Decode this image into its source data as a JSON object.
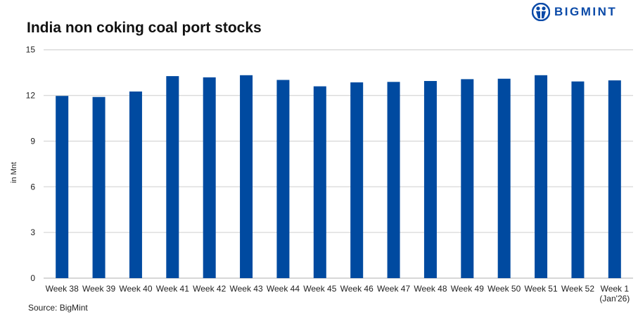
{
  "brand": {
    "name": "BIGMINT",
    "color": "#0a4aa8"
  },
  "source": "Source: BigMint",
  "chart_data": {
    "type": "bar",
    "title": "India non coking coal port stocks",
    "ylabel": "in Mnt",
    "xlabel": "",
    "ylim": [
      0,
      15
    ],
    "yticks": [
      0,
      3,
      6,
      9,
      12,
      15
    ],
    "grid": true,
    "bar_color": "#004aa0",
    "categories": [
      "Week 38",
      "Week 39",
      "Week 40",
      "Week 41",
      "Week 42",
      "Week 43",
      "Week 44",
      "Week 45",
      "Week 46",
      "Week 47",
      "Week 48",
      "Week 49",
      "Week 50",
      "Week 51",
      "Week 52",
      "Week 1\n(Jan'26)"
    ],
    "values": [
      11.97,
      11.9,
      12.26,
      13.27,
      13.19,
      13.33,
      13.02,
      12.6,
      12.86,
      12.89,
      12.95,
      13.07,
      13.1,
      13.33,
      12.92,
      12.99
    ]
  }
}
